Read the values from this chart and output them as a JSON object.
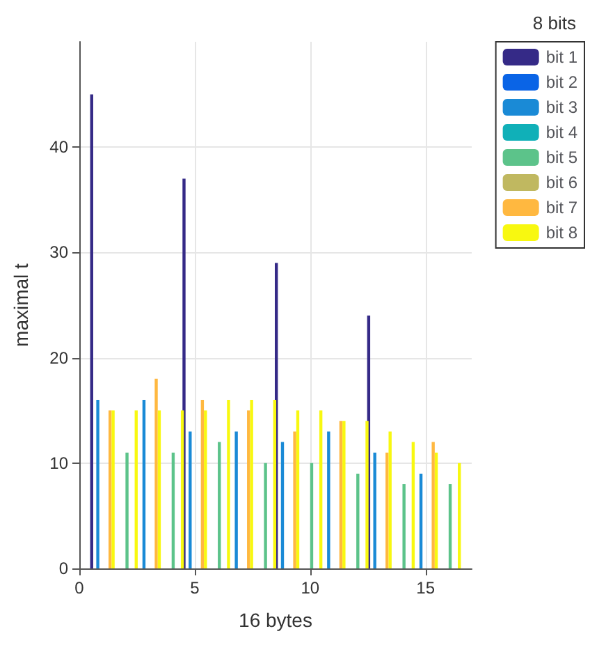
{
  "chart_data": {
    "type": "bar",
    "xlabel": "16 bytes",
    "ylabel": "maximal t",
    "legend_title": "8 bits",
    "x": [
      1,
      2,
      3,
      4,
      5,
      6,
      7,
      8,
      9,
      10,
      11,
      12,
      13,
      14,
      15,
      16
    ],
    "xlim": [
      0,
      17
    ],
    "xticks": [
      0,
      5,
      10,
      15
    ],
    "ylim": [
      0,
      50
    ],
    "yticks": [
      0,
      10,
      20,
      30,
      40
    ],
    "grid": true,
    "legend": "top right",
    "series": [
      {
        "name": "bit 1",
        "color": "#352a87",
        "values": [
          45,
          0,
          0,
          0,
          37,
          0,
          0,
          0,
          29,
          0,
          0,
          0,
          24,
          0,
          0,
          0
        ]
      },
      {
        "name": "bit 2",
        "color": "#0a64e6",
        "values": [
          0,
          0,
          0,
          0,
          0,
          0,
          0,
          0,
          0,
          0,
          0,
          0,
          0,
          0,
          0,
          0
        ]
      },
      {
        "name": "bit 3",
        "color": "#1a8ad6",
        "values": [
          16,
          0,
          16,
          0,
          13,
          0,
          13,
          0,
          12,
          0,
          13,
          0,
          11,
          0,
          9,
          0
        ]
      },
      {
        "name": "bit 4",
        "color": "#10b0b8",
        "values": [
          0,
          0,
          0,
          0,
          0,
          0,
          0,
          0,
          0,
          0,
          0,
          0,
          0,
          0,
          0,
          0
        ]
      },
      {
        "name": "bit 5",
        "color": "#5cc38a",
        "values": [
          0,
          11,
          0,
          11,
          0,
          12,
          0,
          10,
          0,
          10,
          0,
          9,
          0,
          8,
          0,
          8
        ]
      },
      {
        "name": "bit 6",
        "color": "#c0b860",
        "values": [
          0,
          0,
          0,
          0,
          0,
          0,
          0,
          0,
          0,
          0,
          0,
          0,
          0,
          0,
          0,
          0
        ]
      },
      {
        "name": "bit 7",
        "color": "#ffb840",
        "values": [
          15,
          0,
          18,
          0,
          16,
          0,
          15,
          0,
          13,
          0,
          14,
          0,
          11,
          0,
          12,
          0
        ]
      },
      {
        "name": "bit 8",
        "color": "#f8f810",
        "values": [
          15,
          15,
          15,
          15,
          15,
          16,
          16,
          16,
          15,
          15,
          14,
          14,
          13,
          12,
          11,
          10
        ]
      }
    ]
  }
}
